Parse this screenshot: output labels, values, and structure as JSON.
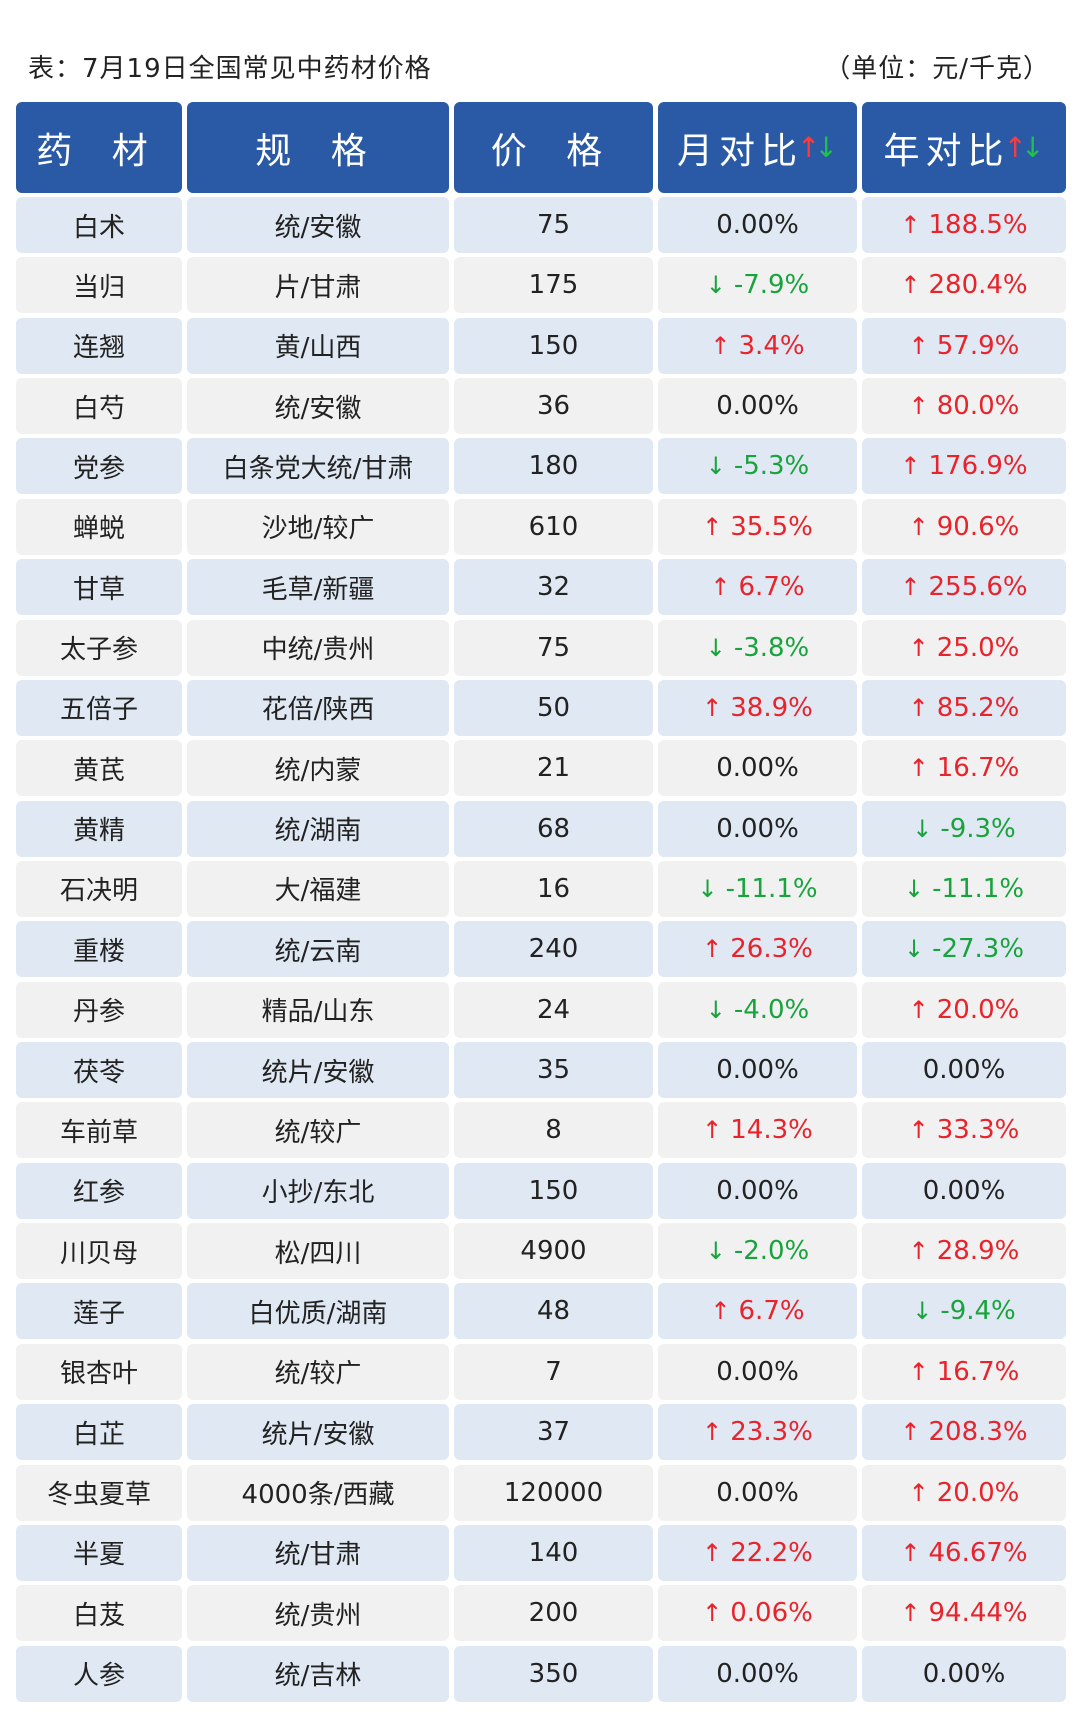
{
  "title": "表：7月19日全国常见中药材价格",
  "unit": "（单位：元/千克）",
  "headers": [
    "药 材",
    "规 格",
    "价 格",
    "月对比",
    "年对比"
  ],
  "header_arrows": {
    "up": "↑",
    "down": "↓"
  },
  "colors": {
    "header_bg": "#2a5aa6",
    "row_odd": "#dfe8f3",
    "row_even": "#f1f1f1",
    "up": "#e8232b",
    "down": "#19a33c"
  },
  "rows": [
    {
      "name": "白术",
      "spec": "统/安徽",
      "price": "75",
      "month": "0.00%",
      "month_dir": "flat",
      "year": "188.5%",
      "year_dir": "up"
    },
    {
      "name": "当归",
      "spec": "片/甘肃",
      "price": "175",
      "month": "-7.9%",
      "month_dir": "down",
      "year": "280.4%",
      "year_dir": "up"
    },
    {
      "name": "连翘",
      "spec": "黄/山西",
      "price": "150",
      "month": "3.4%",
      "month_dir": "up",
      "year": "57.9%",
      "year_dir": "up"
    },
    {
      "name": "白芍",
      "spec": "统/安徽",
      "price": "36",
      "month": "0.00%",
      "month_dir": "flat",
      "year": "80.0%",
      "year_dir": "up"
    },
    {
      "name": "党参",
      "spec": "白条党大统/甘肃",
      "price": "180",
      "month": "-5.3%",
      "month_dir": "down",
      "year": "176.9%",
      "year_dir": "up"
    },
    {
      "name": "蝉蜕",
      "spec": "沙地/较广",
      "price": "610",
      "month": "35.5%",
      "month_dir": "up",
      "year": "90.6%",
      "year_dir": "up"
    },
    {
      "name": "甘草",
      "spec": "毛草/新疆",
      "price": "32",
      "month": "6.7%",
      "month_dir": "up",
      "year": "255.6%",
      "year_dir": "up"
    },
    {
      "name": "太子参",
      "spec": "中统/贵州",
      "price": "75",
      "month": "-3.8%",
      "month_dir": "down",
      "year": "25.0%",
      "year_dir": "up"
    },
    {
      "name": "五倍子",
      "spec": "花倍/陕西",
      "price": "50",
      "month": "38.9%",
      "month_dir": "up",
      "year": "85.2%",
      "year_dir": "up"
    },
    {
      "name": "黄芪",
      "spec": "统/内蒙",
      "price": "21",
      "month": "0.00%",
      "month_dir": "flat",
      "year": "16.7%",
      "year_dir": "up"
    },
    {
      "name": "黄精",
      "spec": "统/湖南",
      "price": "68",
      "month": "0.00%",
      "month_dir": "flat",
      "year": "-9.3%",
      "year_dir": "down"
    },
    {
      "name": "石决明",
      "spec": "大/福建",
      "price": "16",
      "month": "-11.1%",
      "month_dir": "down",
      "year": "-11.1%",
      "year_dir": "down"
    },
    {
      "name": "重楼",
      "spec": "统/云南",
      "price": "240",
      "month": "26.3%",
      "month_dir": "up",
      "year": "-27.3%",
      "year_dir": "down"
    },
    {
      "name": "丹参",
      "spec": "精品/山东",
      "price": "24",
      "month": "-4.0%",
      "month_dir": "down",
      "year": "20.0%",
      "year_dir": "up"
    },
    {
      "name": "茯苓",
      "spec": "统片/安徽",
      "price": "35",
      "month": "0.00%",
      "month_dir": "flat",
      "year": "0.00%",
      "year_dir": "flat"
    },
    {
      "name": "车前草",
      "spec": "统/较广",
      "price": "8",
      "month": "14.3%",
      "month_dir": "up",
      "year": "33.3%",
      "year_dir": "up"
    },
    {
      "name": "红参",
      "spec": "小抄/东北",
      "price": "150",
      "month": "0.00%",
      "month_dir": "flat",
      "year": "0.00%",
      "year_dir": "flat"
    },
    {
      "name": "川贝母",
      "spec": "松/四川",
      "price": "4900",
      "month": "-2.0%",
      "month_dir": "down",
      "year": "28.9%",
      "year_dir": "up"
    },
    {
      "name": "莲子",
      "spec": "白优质/湖南",
      "price": "48",
      "month": "6.7%",
      "month_dir": "up",
      "year": "-9.4%",
      "year_dir": "down"
    },
    {
      "name": "银杏叶",
      "spec": "统/较广",
      "price": "7",
      "month": "0.00%",
      "month_dir": "flat",
      "year": "16.7%",
      "year_dir": "up"
    },
    {
      "name": "白芷",
      "spec": "统片/安徽",
      "price": "37",
      "month": "23.3%",
      "month_dir": "up",
      "year": "208.3%",
      "year_dir": "up"
    },
    {
      "name": "冬虫夏草",
      "spec": "4000条/西藏",
      "price": "120000",
      "month": "0.00%",
      "month_dir": "flat",
      "year": "20.0%",
      "year_dir": "up"
    },
    {
      "name": "半夏",
      "spec": "统/甘肃",
      "price": "140",
      "month": "22.2%",
      "month_dir": "up",
      "year": "46.67%",
      "year_dir": "up"
    },
    {
      "name": "白芨",
      "spec": "统/贵州",
      "price": "200",
      "month": "0.06%",
      "month_dir": "up",
      "year": "94.44%",
      "year_dir": "up"
    },
    {
      "name": "人参",
      "spec": "统/吉林",
      "price": "350",
      "month": "0.00%",
      "month_dir": "flat",
      "year": "0.00%",
      "year_dir": "flat"
    }
  ]
}
